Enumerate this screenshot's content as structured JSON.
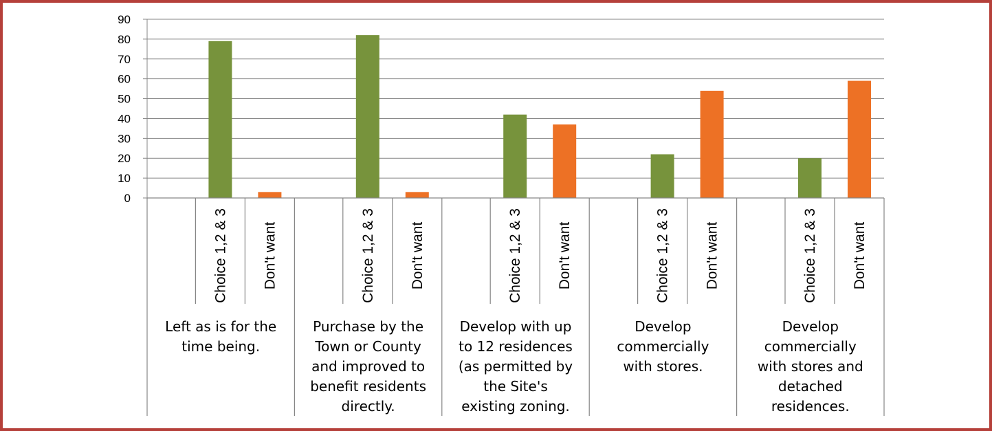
{
  "chart_data": {
    "type": "bar",
    "title": "",
    "xlabel": "",
    "ylabel": "",
    "ylim": [
      0,
      90
    ],
    "yticks": [
      0,
      10,
      20,
      30,
      40,
      50,
      60,
      70,
      80,
      90
    ],
    "grid": true,
    "legend": "none",
    "colors": {
      "frame": "#b5403a",
      "series": [
        "#77933c",
        "#ed7125"
      ],
      "grid": "#868686"
    },
    "groups": [
      {
        "label_lines": [
          "Left as is for the",
          "time being."
        ],
        "bars": [
          {
            "label": "Choice 1,2 & 3",
            "value": 79
          },
          {
            "label": "Don't want",
            "value": 3
          }
        ]
      },
      {
        "label_lines": [
          "Purchase by the",
          "Town or County",
          "and improved to",
          "benefit residents",
          "directly."
        ],
        "bars": [
          {
            "label": "Choice 1,2 & 3",
            "value": 82
          },
          {
            "label": "Don't want",
            "value": 3
          }
        ]
      },
      {
        "label_lines": [
          "Develop with up",
          "to 12 residences",
          "(as permitted by",
          "the Site's",
          "existing zoning."
        ],
        "bars": [
          {
            "label": "Choice 1,2 & 3",
            "value": 42
          },
          {
            "label": "Don't want",
            "value": 37
          }
        ]
      },
      {
        "label_lines": [
          "Develop",
          "commercially",
          "with stores."
        ],
        "bars": [
          {
            "label": "Choice 1,2 & 3",
            "value": 22
          },
          {
            "label": "Don't want",
            "value": 54
          }
        ]
      },
      {
        "label_lines": [
          "Develop",
          "commercially",
          "with stores and",
          "detached",
          "residences."
        ],
        "bars": [
          {
            "label": "Choice 1,2 & 3",
            "value": 20
          },
          {
            "label": "Don't want",
            "value": 59
          }
        ]
      }
    ]
  }
}
